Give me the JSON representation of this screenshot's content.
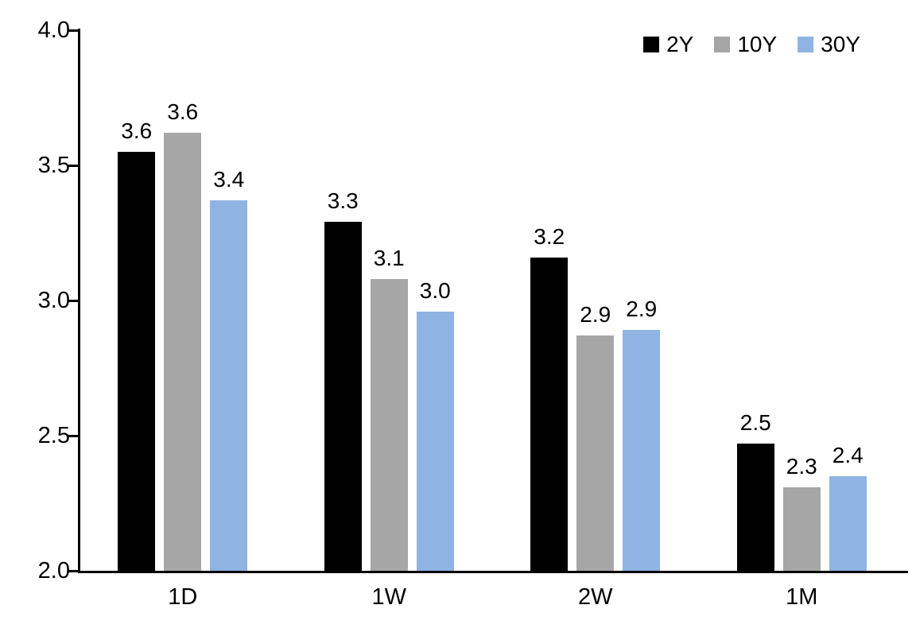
{
  "chart_data": {
    "type": "bar",
    "title": "",
    "xlabel": "",
    "ylabel": "",
    "grid": false,
    "legend_position": "top-right",
    "categories": [
      "1D",
      "1W",
      "2W",
      "1M"
    ],
    "series": [
      {
        "name": "2Y",
        "color": "#000000",
        "values": [
          3.55,
          3.29,
          3.16,
          2.47
        ],
        "labels": [
          "3.6",
          "3.3",
          "3.2",
          "2.5"
        ]
      },
      {
        "name": "10Y",
        "color": "#A6A6A6",
        "values": [
          3.62,
          3.08,
          2.87,
          2.31
        ],
        "labels": [
          "3.6",
          "3.1",
          "2.9",
          "2.3"
        ]
      },
      {
        "name": "30Y",
        "color": "#8FB4E3",
        "values": [
          3.37,
          2.96,
          2.89,
          2.35
        ],
        "labels": [
          "3.4",
          "3.0",
          "2.9",
          "2.4"
        ]
      }
    ],
    "ylim": [
      2.0,
      4.0
    ],
    "yticks": [
      2.0,
      2.5,
      3.0,
      3.5,
      4.0
    ],
    "ytick_labels": [
      "2.0",
      "2.5",
      "3.0",
      "3.5",
      "4.0"
    ]
  }
}
